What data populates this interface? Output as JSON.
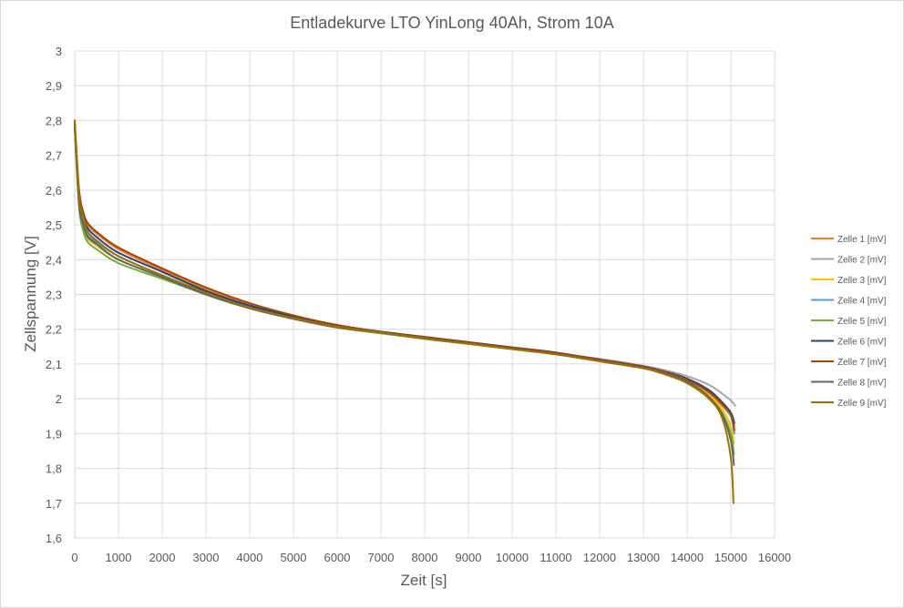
{
  "chart_data": {
    "type": "line",
    "title": "Entladekurve LTO YinLong 40Ah, Strom 10A",
    "xlabel": "Zeit [s]",
    "ylabel": "Zellspannung [V]",
    "xlim": [
      0,
      16000
    ],
    "ylim": [
      1.6,
      3.0
    ],
    "x_ticks": [
      0,
      1000,
      2000,
      3000,
      4000,
      5000,
      6000,
      7000,
      8000,
      9000,
      10000,
      11000,
      12000,
      13000,
      14000,
      15000,
      16000
    ],
    "y_ticks": [
      "1,6",
      "1,7",
      "1,8",
      "1,9",
      "2",
      "2,1",
      "2,2",
      "2,3",
      "2,4",
      "2,5",
      "2,6",
      "2,7",
      "2,8",
      "2,9",
      "3"
    ],
    "grid": true,
    "legend_position": "right",
    "series": [
      {
        "name": "Zelle 1 [mV]",
        "color": "#ED7D31",
        "x": [
          0,
          100,
          200,
          300,
          500,
          1000,
          2000,
          3000,
          4000,
          5000,
          6000,
          7000,
          8000,
          9000,
          10000,
          11000,
          12000,
          13000,
          13500,
          14000,
          14500,
          14800,
          15000,
          15080
        ],
        "y": [
          2.79,
          2.59,
          2.53,
          2.5,
          2.475,
          2.43,
          2.37,
          2.315,
          2.27,
          2.235,
          2.21,
          2.19,
          2.175,
          2.16,
          2.145,
          2.13,
          2.11,
          2.09,
          2.075,
          2.05,
          2.015,
          1.98,
          1.95,
          1.92
        ]
      },
      {
        "name": "Zelle 2 [mV]",
        "color": "#A5A5A5",
        "x": [
          0,
          100,
          200,
          300,
          500,
          1000,
          2000,
          3000,
          4000,
          5000,
          6000,
          7000,
          8000,
          9000,
          10000,
          11000,
          12000,
          13000,
          13500,
          14000,
          14500,
          14800,
          15000,
          15100
        ],
        "y": [
          2.78,
          2.57,
          2.51,
          2.48,
          2.455,
          2.41,
          2.355,
          2.305,
          2.265,
          2.235,
          2.21,
          2.19,
          2.175,
          2.16,
          2.145,
          2.13,
          2.115,
          2.095,
          2.082,
          2.065,
          2.04,
          2.015,
          1.995,
          1.98
        ]
      },
      {
        "name": "Zelle 3 [mV]",
        "color": "#FFC000",
        "x": [
          0,
          100,
          200,
          300,
          500,
          1000,
          2000,
          3000,
          4000,
          5000,
          6000,
          7000,
          8000,
          9000,
          10000,
          11000,
          12000,
          13000,
          13500,
          14000,
          14500,
          14800,
          15000,
          15070
        ],
        "y": [
          2.78,
          2.56,
          2.49,
          2.46,
          2.44,
          2.4,
          2.35,
          2.3,
          2.26,
          2.23,
          2.205,
          2.19,
          2.172,
          2.158,
          2.143,
          2.128,
          2.108,
          2.088,
          2.072,
          2.05,
          2.01,
          1.97,
          1.92,
          1.87
        ]
      },
      {
        "name": "Zelle 4 [mV]",
        "color": "#5B9BD5",
        "x": [
          0,
          100,
          200,
          300,
          500,
          1000,
          2000,
          3000,
          4000,
          5000,
          6000,
          7000,
          8000,
          9000,
          10000,
          11000,
          12000,
          13000,
          13500,
          14000,
          14500,
          14800,
          15000,
          15080
        ],
        "y": [
          2.78,
          2.57,
          2.505,
          2.47,
          2.45,
          2.41,
          2.355,
          2.305,
          2.265,
          2.235,
          2.21,
          2.19,
          2.175,
          2.16,
          2.145,
          2.13,
          2.11,
          2.09,
          2.075,
          2.055,
          2.02,
          1.985,
          1.95,
          1.9
        ]
      },
      {
        "name": "Zelle 5 [mV]",
        "color": "#70AD47",
        "x": [
          0,
          100,
          200,
          300,
          500,
          1000,
          2000,
          3000,
          4000,
          5000,
          6000,
          7000,
          8000,
          9000,
          10000,
          11000,
          12000,
          13000,
          13500,
          14000,
          14500,
          14800,
          15000,
          15070
        ],
        "y": [
          2.78,
          2.55,
          2.48,
          2.45,
          2.43,
          2.39,
          2.345,
          2.3,
          2.26,
          2.23,
          2.205,
          2.188,
          2.172,
          2.158,
          2.143,
          2.128,
          2.108,
          2.088,
          2.07,
          2.048,
          2.005,
          1.96,
          1.9,
          1.84
        ]
      },
      {
        "name": "Zelle 6 [mV]",
        "color": "#264478",
        "x": [
          0,
          100,
          200,
          300,
          500,
          1000,
          2000,
          3000,
          4000,
          5000,
          6000,
          7000,
          8000,
          9000,
          10000,
          11000,
          12000,
          13000,
          13500,
          14000,
          14500,
          14800,
          15000,
          15080
        ],
        "y": [
          2.79,
          2.58,
          2.52,
          2.49,
          2.465,
          2.42,
          2.365,
          2.31,
          2.268,
          2.237,
          2.212,
          2.193,
          2.178,
          2.163,
          2.148,
          2.133,
          2.113,
          2.093,
          2.078,
          2.058,
          2.025,
          1.99,
          1.96,
          1.93
        ]
      },
      {
        "name": "Zelle 7 [mV]",
        "color": "#9E480E",
        "x": [
          0,
          100,
          200,
          300,
          500,
          1000,
          2000,
          3000,
          4000,
          5000,
          6000,
          7000,
          8000,
          9000,
          10000,
          11000,
          12000,
          13000,
          13500,
          14000,
          14500,
          14800,
          15000,
          15080
        ],
        "y": [
          2.8,
          2.6,
          2.535,
          2.505,
          2.48,
          2.435,
          2.375,
          2.32,
          2.275,
          2.24,
          2.212,
          2.192,
          2.177,
          2.162,
          2.147,
          2.132,
          2.112,
          2.092,
          2.077,
          2.055,
          2.02,
          1.985,
          1.955,
          1.91
        ]
      },
      {
        "name": "Zelle 8 [mV]",
        "color": "#636363",
        "x": [
          0,
          100,
          200,
          300,
          500,
          1000,
          2000,
          3000,
          4000,
          5000,
          6000,
          7000,
          8000,
          9000,
          10000,
          11000,
          12000,
          13000,
          13500,
          14000,
          14500,
          14800,
          15000,
          15070
        ],
        "y": [
          2.78,
          2.56,
          2.5,
          2.465,
          2.445,
          2.4,
          2.35,
          2.3,
          2.26,
          2.23,
          2.205,
          2.19,
          2.173,
          2.158,
          2.143,
          2.128,
          2.108,
          2.088,
          2.072,
          2.05,
          2.005,
          1.955,
          1.88,
          1.81
        ]
      },
      {
        "name": "Zelle 9 [mV]",
        "color": "#997300",
        "x": [
          0,
          100,
          200,
          300,
          500,
          1000,
          2000,
          3000,
          4000,
          5000,
          6000,
          7000,
          8000,
          9000,
          10000,
          11000,
          12000,
          13000,
          13500,
          14000,
          14500,
          14800,
          15000,
          15060
        ],
        "y": [
          2.8,
          2.58,
          2.52,
          2.48,
          2.455,
          2.41,
          2.355,
          2.305,
          2.262,
          2.232,
          2.207,
          2.19,
          2.173,
          2.158,
          2.143,
          2.128,
          2.108,
          2.088,
          2.07,
          2.045,
          2.0,
          1.945,
          1.83,
          1.7
        ]
      }
    ]
  }
}
